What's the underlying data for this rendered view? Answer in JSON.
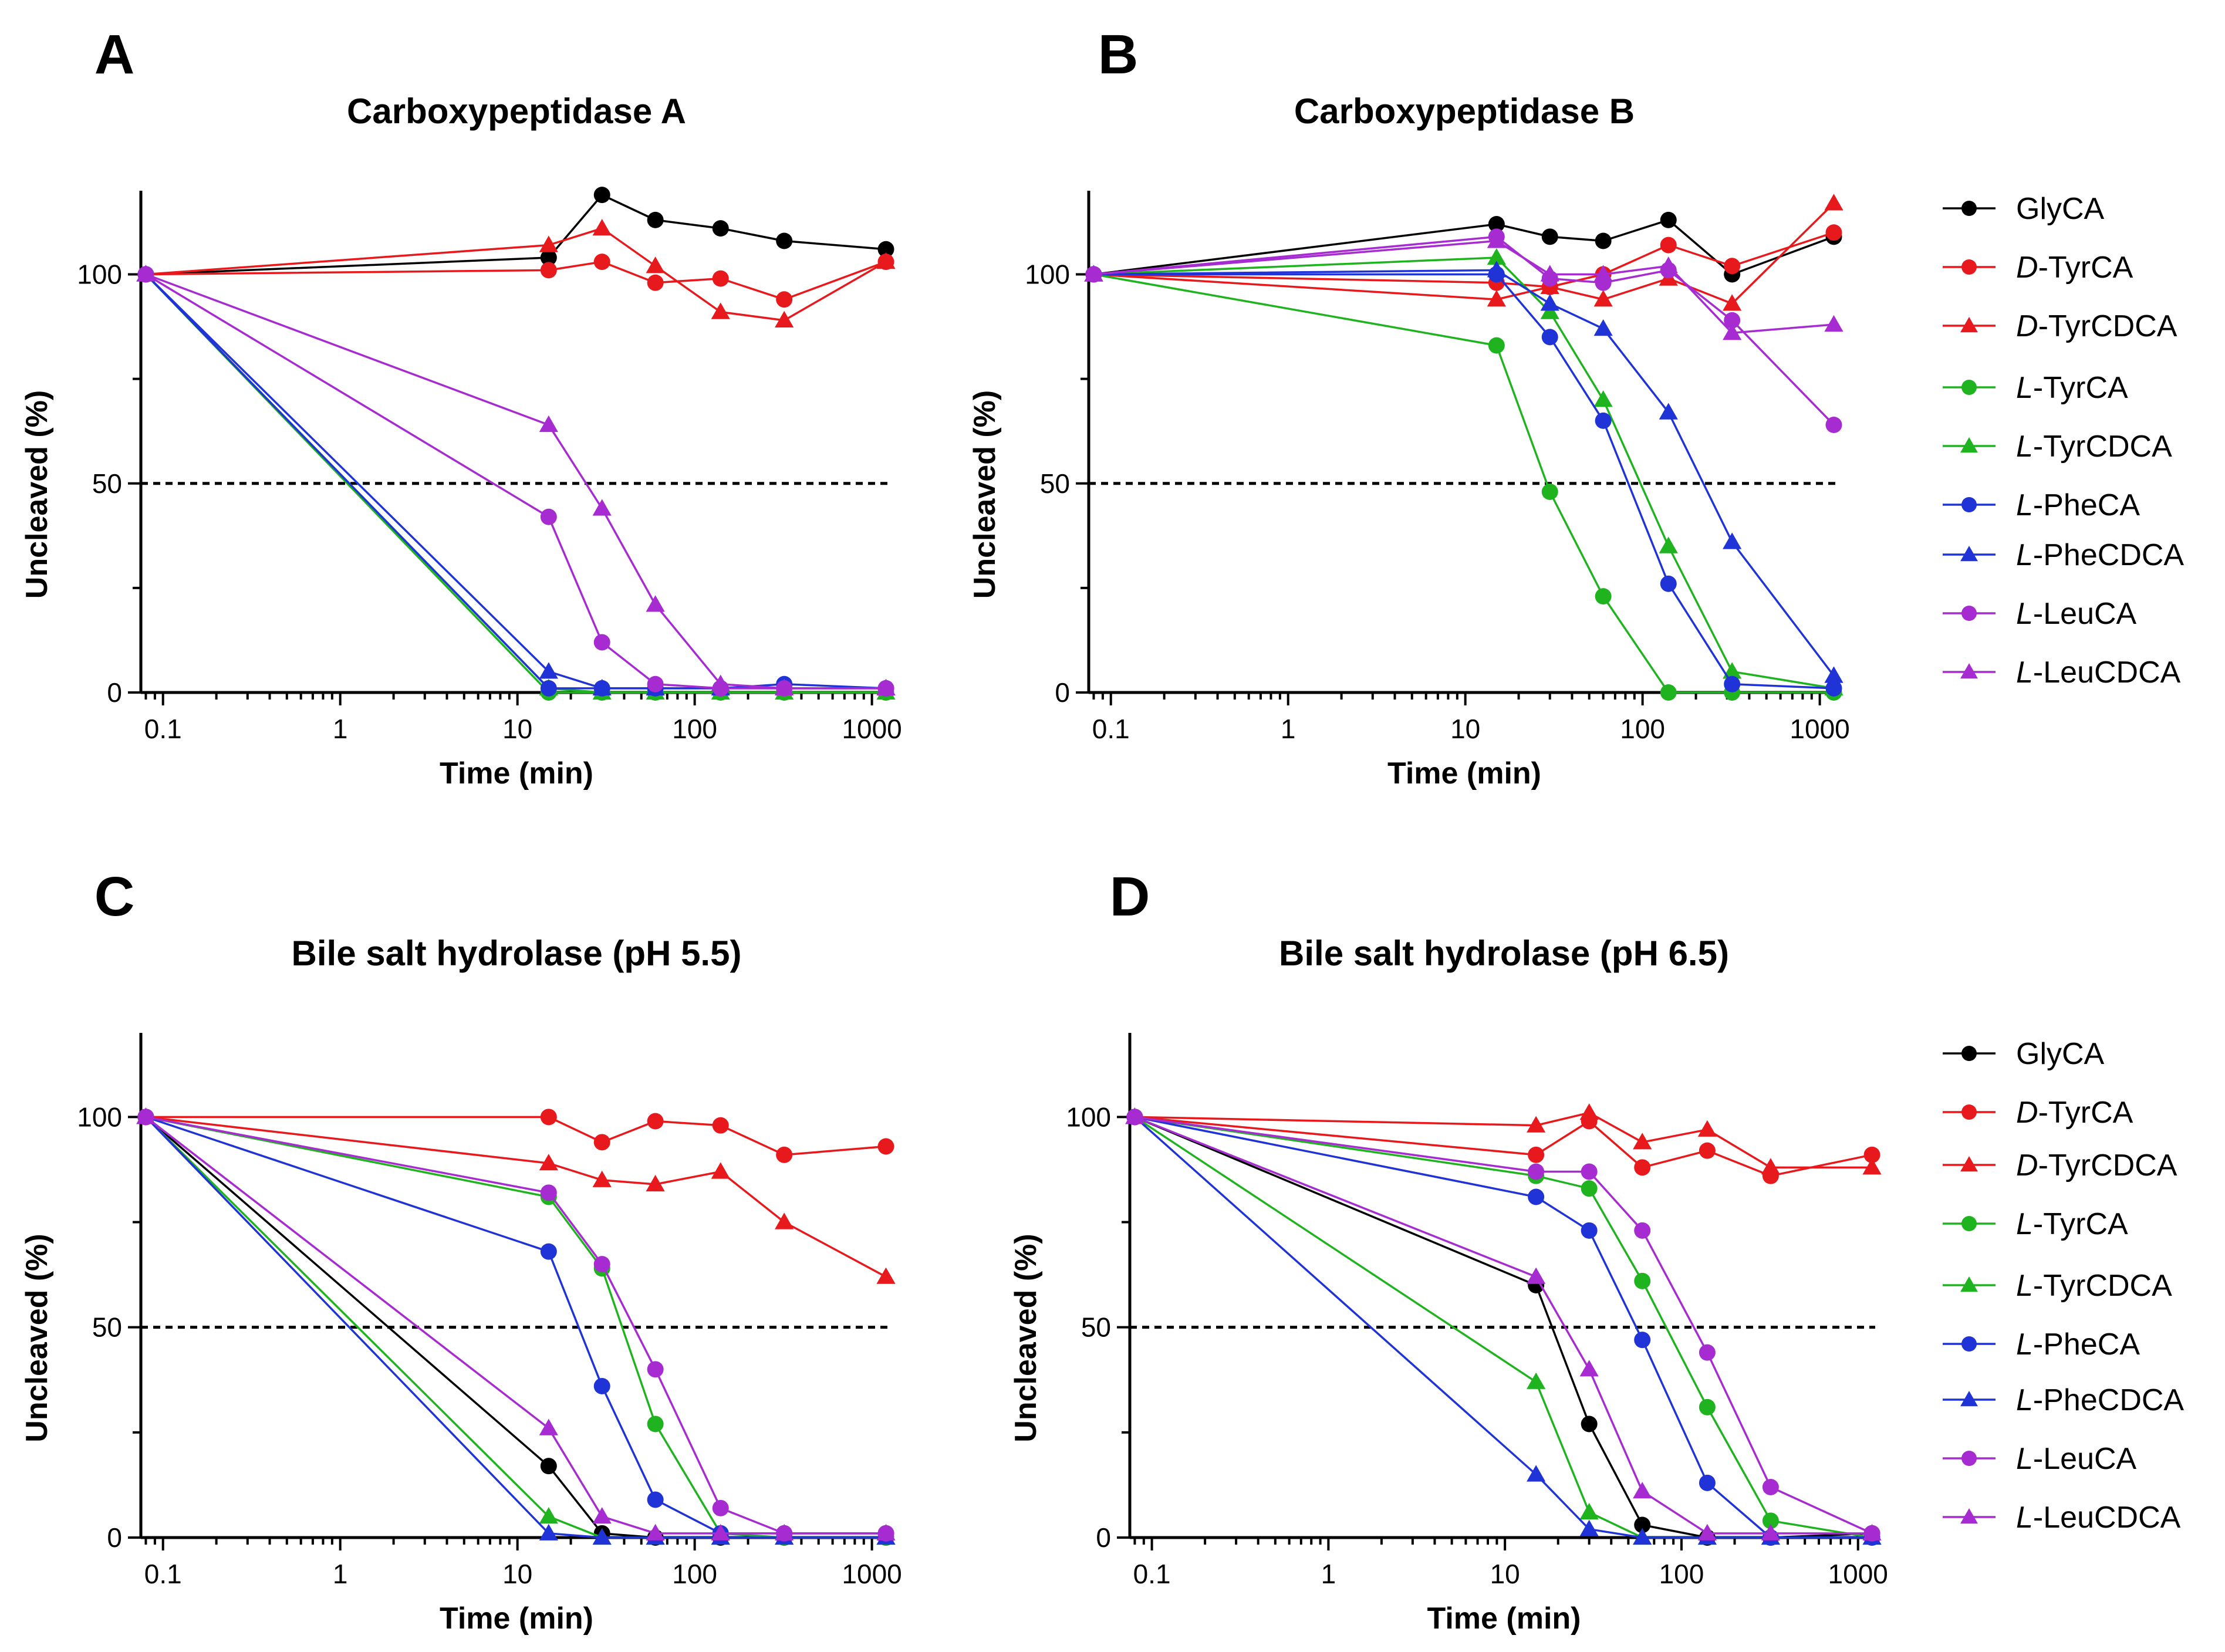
{
  "figure": {
    "panels": [
      {
        "letter": "A",
        "title": "Carboxypeptidase A"
      },
      {
        "letter": "B",
        "title": "Carboxypeptidase B"
      },
      {
        "letter": "C",
        "title": "Bile salt hydrolase (pH 5.5)"
      },
      {
        "letter": "D",
        "title": "Bile salt hydrolase (pH 6.5)"
      }
    ]
  },
  "legend": [
    {
      "prefix": "",
      "name": "GlyCA",
      "color": "#000000",
      "marker": "circle"
    },
    {
      "prefix": "D",
      "name": "-TyrCA",
      "color": "#e8191c",
      "marker": "circle"
    },
    {
      "prefix": "D",
      "name": "-TyrCDCA",
      "color": "#e8191c",
      "marker": "triangle"
    },
    {
      "prefix": "L",
      "name": "-TyrCA",
      "color": "#1fb31f",
      "marker": "circle"
    },
    {
      "prefix": "L",
      "name": "-TyrCDCA",
      "color": "#1fb31f",
      "marker": "triangle"
    },
    {
      "prefix": "L",
      "name": "-PheCA",
      "color": "#1f33d6",
      "marker": "circle"
    },
    {
      "prefix": "L",
      "name": "-PheCDCA",
      "color": "#1f33d6",
      "marker": "triangle"
    },
    {
      "prefix": "L",
      "name": "-LeuCA",
      "color": "#a62bd0",
      "marker": "circle"
    },
    {
      "prefix": "L",
      "name": "-LeuCDCA",
      "color": "#a62bd0",
      "marker": "triangle"
    }
  ],
  "chart_data": [
    {
      "type": "line",
      "title": "Carboxypeptidase A",
      "xlabel": "Time (min)",
      "ylabel": "Uncleaved (%)",
      "xscale": "log",
      "xlim": [
        0.075,
        1300
      ],
      "ylim": [
        0,
        120
      ],
      "xticks": [
        0.1,
        1,
        10,
        100,
        1000
      ],
      "xtick_labels": [
        "0.1",
        "1",
        "10",
        "100",
        "1000"
      ],
      "yticks": [
        0,
        50,
        100
      ],
      "ytick_labels": [
        "0",
        "50",
        "100"
      ],
      "reference_line": 50,
      "x": [
        0.08,
        15,
        30,
        60,
        140,
        320,
        1200
      ],
      "series": [
        {
          "name": "GlyCA",
          "values": [
            100,
            104,
            119,
            113,
            111,
            108,
            106
          ]
        },
        {
          "name": "D-TyrCA",
          "values": [
            100,
            101,
            103,
            98,
            99,
            94,
            103
          ]
        },
        {
          "name": "D-TyrCDCA",
          "values": [
            100,
            107,
            111,
            102,
            91,
            89,
            103
          ]
        },
        {
          "name": "L-TyrCA",
          "values": [
            100,
            0,
            0,
            0,
            0,
            0,
            0
          ]
        },
        {
          "name": "L-TyrCDCA",
          "values": [
            100,
            1,
            0,
            0,
            0,
            0,
            0
          ]
        },
        {
          "name": "L-PheCA",
          "values": [
            100,
            1,
            1,
            1,
            1,
            2,
            1
          ]
        },
        {
          "name": "L-PheCDCA",
          "values": [
            100,
            5,
            1,
            1,
            1,
            1,
            1
          ]
        },
        {
          "name": "L-LeuCA",
          "values": [
            100,
            42,
            12,
            2,
            1,
            1,
            1
          ]
        },
        {
          "name": "L-LeuCDCA",
          "values": [
            100,
            64,
            44,
            21,
            2,
            1,
            1
          ]
        }
      ]
    },
    {
      "type": "line",
      "title": "Carboxypeptidase B",
      "xlabel": "Time (min)",
      "ylabel": "Uncleaved (%)",
      "xscale": "log",
      "xlim": [
        0.075,
        1300
      ],
      "ylim": [
        0,
        120
      ],
      "xticks": [
        0.1,
        1,
        10,
        100,
        1000
      ],
      "xtick_labels": [
        "0.1",
        "1",
        "10",
        "100",
        "1000"
      ],
      "yticks": [
        0,
        50,
        100
      ],
      "ytick_labels": [
        "0",
        "50",
        "100"
      ],
      "reference_line": 50,
      "x": [
        0.08,
        15,
        30,
        60,
        140,
        320,
        1200
      ],
      "series": [
        {
          "name": "GlyCA",
          "values": [
            100,
            112,
            109,
            108,
            113,
            100,
            109
          ]
        },
        {
          "name": "D-TyrCA",
          "values": [
            100,
            98,
            97,
            100,
            107,
            102,
            110
          ]
        },
        {
          "name": "D-TyrCDCA",
          "values": [
            100,
            94,
            97,
            94,
            99,
            93,
            117
          ]
        },
        {
          "name": "L-TyrCA",
          "values": [
            100,
            83,
            48,
            23,
            0,
            0,
            0
          ]
        },
        {
          "name": "L-TyrCDCA",
          "values": [
            100,
            104,
            91,
            70,
            35,
            5,
            1
          ]
        },
        {
          "name": "L-PheCA",
          "values": [
            100,
            100,
            85,
            65,
            26,
            2,
            1
          ]
        },
        {
          "name": "L-PheCDCA",
          "values": [
            100,
            101,
            93,
            87,
            67,
            36,
            4
          ]
        },
        {
          "name": "L-LeuCA",
          "values": [
            100,
            109,
            99,
            98,
            101,
            89,
            64
          ]
        },
        {
          "name": "L-LeuCDCA",
          "values": [
            100,
            108,
            100,
            100,
            102,
            86,
            88
          ]
        }
      ]
    },
    {
      "type": "line",
      "title": "Bile salt hydrolase (pH 5.5)",
      "xlabel": "Time (min)",
      "ylabel": "Uncleaved (%)",
      "xscale": "log",
      "xlim": [
        0.075,
        1300
      ],
      "ylim": [
        0,
        120
      ],
      "xticks": [
        0.1,
        1,
        10,
        100,
        1000
      ],
      "xtick_labels": [
        "0.1",
        "1",
        "10",
        "100",
        "1000"
      ],
      "yticks": [
        0,
        50,
        100
      ],
      "ytick_labels": [
        "0",
        "50",
        "100"
      ],
      "reference_line": 50,
      "x": [
        0.08,
        15,
        30,
        60,
        140,
        320,
        1200
      ],
      "series": [
        {
          "name": "GlyCA",
          "values": [
            100,
            17,
            1,
            0,
            0,
            0,
            0
          ]
        },
        {
          "name": "D-TyrCA",
          "values": [
            100,
            100,
            94,
            99,
            98,
            91,
            93
          ]
        },
        {
          "name": "D-TyrCDCA",
          "values": [
            100,
            89,
            85,
            84,
            87,
            75,
            62
          ]
        },
        {
          "name": "L-TyrCA",
          "values": [
            100,
            81,
            64,
            27,
            1,
            0,
            0
          ]
        },
        {
          "name": "L-TyrCDCA",
          "values": [
            100,
            5,
            0,
            0,
            0,
            0,
            0
          ]
        },
        {
          "name": "L-PheCA",
          "values": [
            100,
            68,
            36,
            9,
            1,
            1,
            1
          ]
        },
        {
          "name": "L-PheCDCA",
          "values": [
            100,
            1,
            0,
            0,
            0,
            0,
            0
          ]
        },
        {
          "name": "L-LeuCA",
          "values": [
            100,
            82,
            65,
            40,
            7,
            1,
            1
          ]
        },
        {
          "name": "L-LeuCDCA",
          "values": [
            100,
            26,
            5,
            1,
            1,
            1,
            1
          ]
        }
      ]
    },
    {
      "type": "line",
      "title": "Bile salt hydrolase (pH 6.5)",
      "xlabel": "Time (min)",
      "ylabel": "Uncleaved (%)",
      "xscale": "log",
      "xlim": [
        0.075,
        1300
      ],
      "ylim": [
        0,
        120
      ],
      "xticks": [
        0.1,
        1,
        10,
        100,
        1000
      ],
      "xtick_labels": [
        "0.1",
        "1",
        "10",
        "100",
        "1000"
      ],
      "yticks": [
        0,
        50,
        100
      ],
      "ytick_labels": [
        "0",
        "50",
        "100"
      ],
      "reference_line": 50,
      "x": [
        0.08,
        15,
        30,
        60,
        140,
        320,
        1200
      ],
      "series": [
        {
          "name": "GlyCA",
          "values": [
            100,
            60,
            27,
            3,
            0,
            0,
            1
          ]
        },
        {
          "name": "D-TyrCA",
          "values": [
            100,
            91,
            99,
            88,
            92,
            86,
            91
          ]
        },
        {
          "name": "D-TyrCDCA",
          "values": [
            100,
            98,
            101,
            94,
            97,
            88,
            88
          ]
        },
        {
          "name": "L-TyrCA",
          "values": [
            100,
            86,
            83,
            61,
            31,
            4,
            0
          ]
        },
        {
          "name": "L-TyrCDCA",
          "values": [
            100,
            37,
            6,
            0,
            0,
            0,
            0
          ]
        },
        {
          "name": "L-PheCA",
          "values": [
            100,
            81,
            73,
            47,
            13,
            0,
            0
          ]
        },
        {
          "name": "L-PheCDCA",
          "values": [
            100,
            15,
            2,
            0,
            0,
            0,
            0
          ]
        },
        {
          "name": "L-LeuCA",
          "values": [
            100,
            87,
            87,
            73,
            44,
            12,
            1
          ]
        },
        {
          "name": "L-LeuCDCA",
          "values": [
            100,
            62,
            40,
            11,
            1,
            1,
            1
          ]
        }
      ]
    }
  ]
}
